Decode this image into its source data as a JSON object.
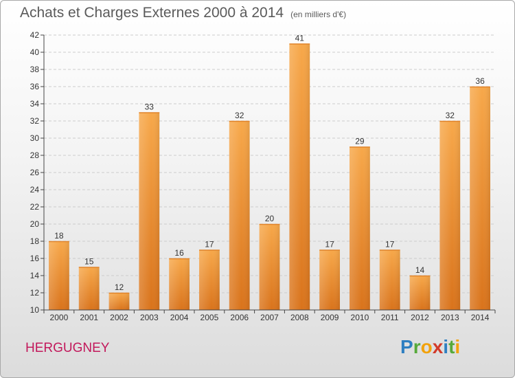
{
  "header": {
    "title": "Achats et Charges Externes 2000 à 2014",
    "unit_note": "(en milliers d'€)"
  },
  "footer": {
    "commune": "HERGUGNEY",
    "brand": "Proxiti",
    "brand_letters": [
      {
        "ch": "P",
        "color": "#2e7fc1"
      },
      {
        "ch": "r",
        "color": "#56a93a"
      },
      {
        "ch": "o",
        "color": "#f2a20c"
      },
      {
        "ch": "x",
        "color": "#d23a2a"
      },
      {
        "ch": "i",
        "color": "#2e7fc1"
      },
      {
        "ch": "t",
        "color": "#56a93a"
      },
      {
        "ch": "i",
        "color": "#f2a20c"
      }
    ]
  },
  "chart_data": {
    "type": "bar",
    "title": "Achats et Charges Externes 2000 à 2014",
    "subtitle": "(en milliers d'€)",
    "categories": [
      "2000",
      "2001",
      "2002",
      "2003",
      "2004",
      "2005",
      "2006",
      "2007",
      "2008",
      "2009",
      "2010",
      "2011",
      "2012",
      "2013",
      "2014"
    ],
    "values": [
      18,
      15,
      12,
      33,
      16,
      17,
      32,
      20,
      41,
      17,
      29,
      17,
      14,
      32,
      36
    ],
    "ylim": [
      10,
      42
    ],
    "yticks": [
      10,
      12,
      14,
      16,
      18,
      20,
      22,
      24,
      26,
      28,
      30,
      32,
      34,
      36,
      38,
      40,
      42
    ],
    "grid": "horizontal dashed",
    "data_labels": true,
    "colors": {
      "bar_light": "#f7a84a",
      "bar_dark": "#d9731b",
      "axis": "#444444",
      "grid": "#cccccc"
    }
  }
}
